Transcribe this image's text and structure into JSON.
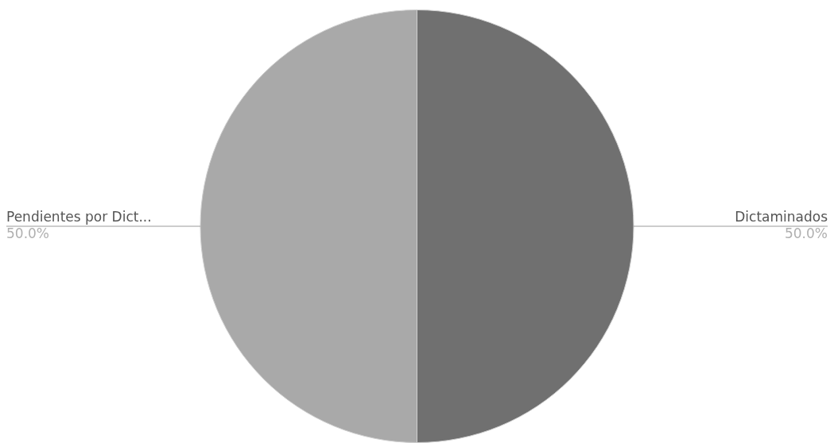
{
  "chart_data": {
    "type": "pie",
    "categories": [
      "Dictaminados",
      "Pendientes por Dict..."
    ],
    "values": [
      50,
      50
    ],
    "colors": [
      "#707070",
      "#a9a9a9"
    ],
    "value_labels": [
      "50.0%",
      "50.0%"
    ],
    "legend": false
  }
}
